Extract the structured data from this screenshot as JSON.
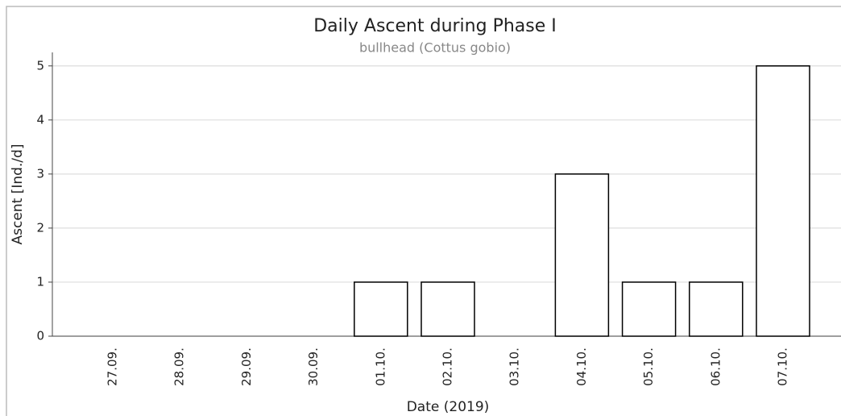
{
  "chart_data": {
    "type": "bar",
    "title": "Daily Ascent during Phase I",
    "subtitle": "bullhead (Cottus gobio)",
    "x_label": "Date (2019)",
    "y_label": "Ascent [Ind./d]",
    "categories": [
      "27.09.",
      "28.09.",
      "29.09.",
      "30.09.",
      "01.10.",
      "02.10.",
      "03.10.",
      "04.10.",
      "05.10.",
      "06.10.",
      "07.10."
    ],
    "values": [
      0,
      0,
      0,
      0,
      1,
      1,
      0,
      3,
      1,
      1,
      5
    ],
    "color": "#ffffff",
    "edge_color": "#000000",
    "ylim": [
      0,
      5.25
    ],
    "yticks": [
      0,
      1,
      2,
      3,
      4,
      5
    ],
    "grid": true
  }
}
